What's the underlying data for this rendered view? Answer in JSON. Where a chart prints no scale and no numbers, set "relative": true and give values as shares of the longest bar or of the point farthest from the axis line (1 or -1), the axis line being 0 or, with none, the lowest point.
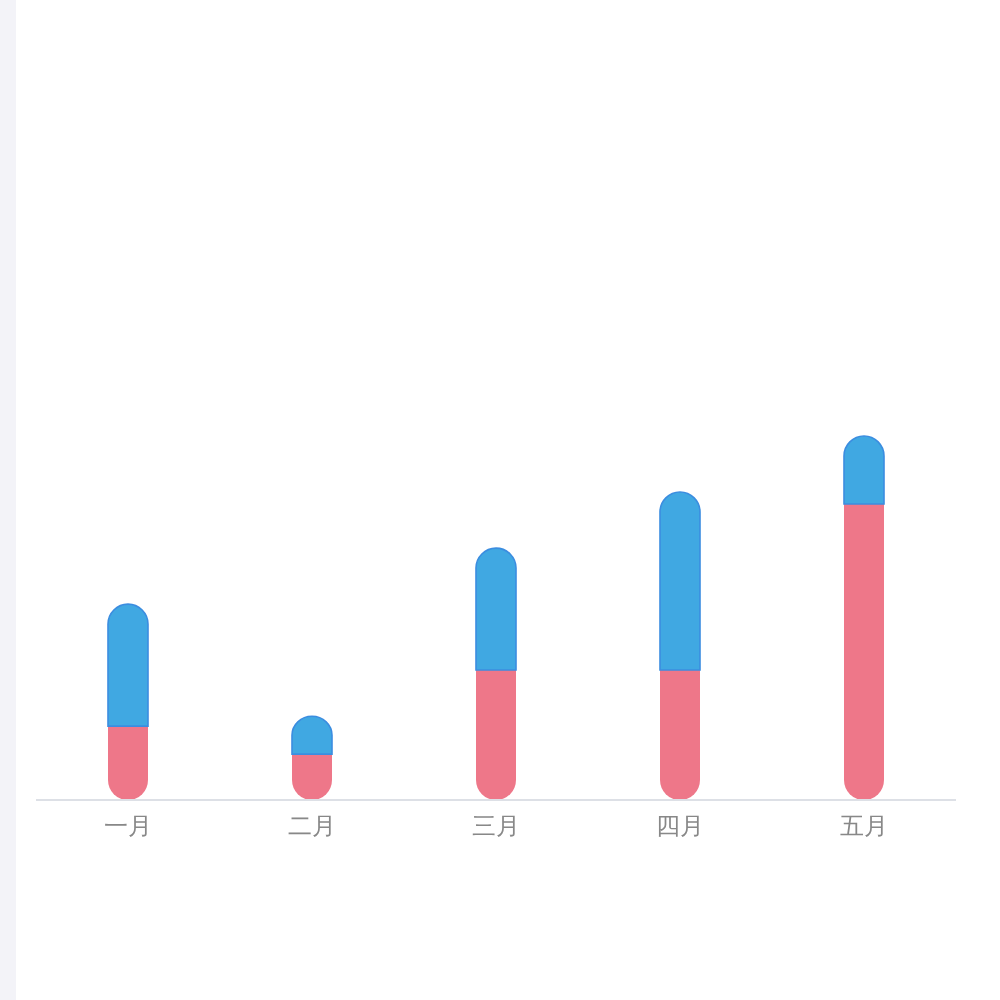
{
  "chart_data": {
    "type": "bar",
    "relative": true,
    "stacked": true,
    "categories": [
      "一月",
      "二月",
      "三月",
      "四月",
      "五月"
    ],
    "series": [
      {
        "color": "#ee7789",
        "values": [
          0.203,
          0.126,
          0.357,
          0.357,
          0.813
        ]
      },
      {
        "color": "#40a8e2",
        "values": [
          0.335,
          0.104,
          0.335,
          0.489,
          0.187
        ]
      }
    ]
  }
}
